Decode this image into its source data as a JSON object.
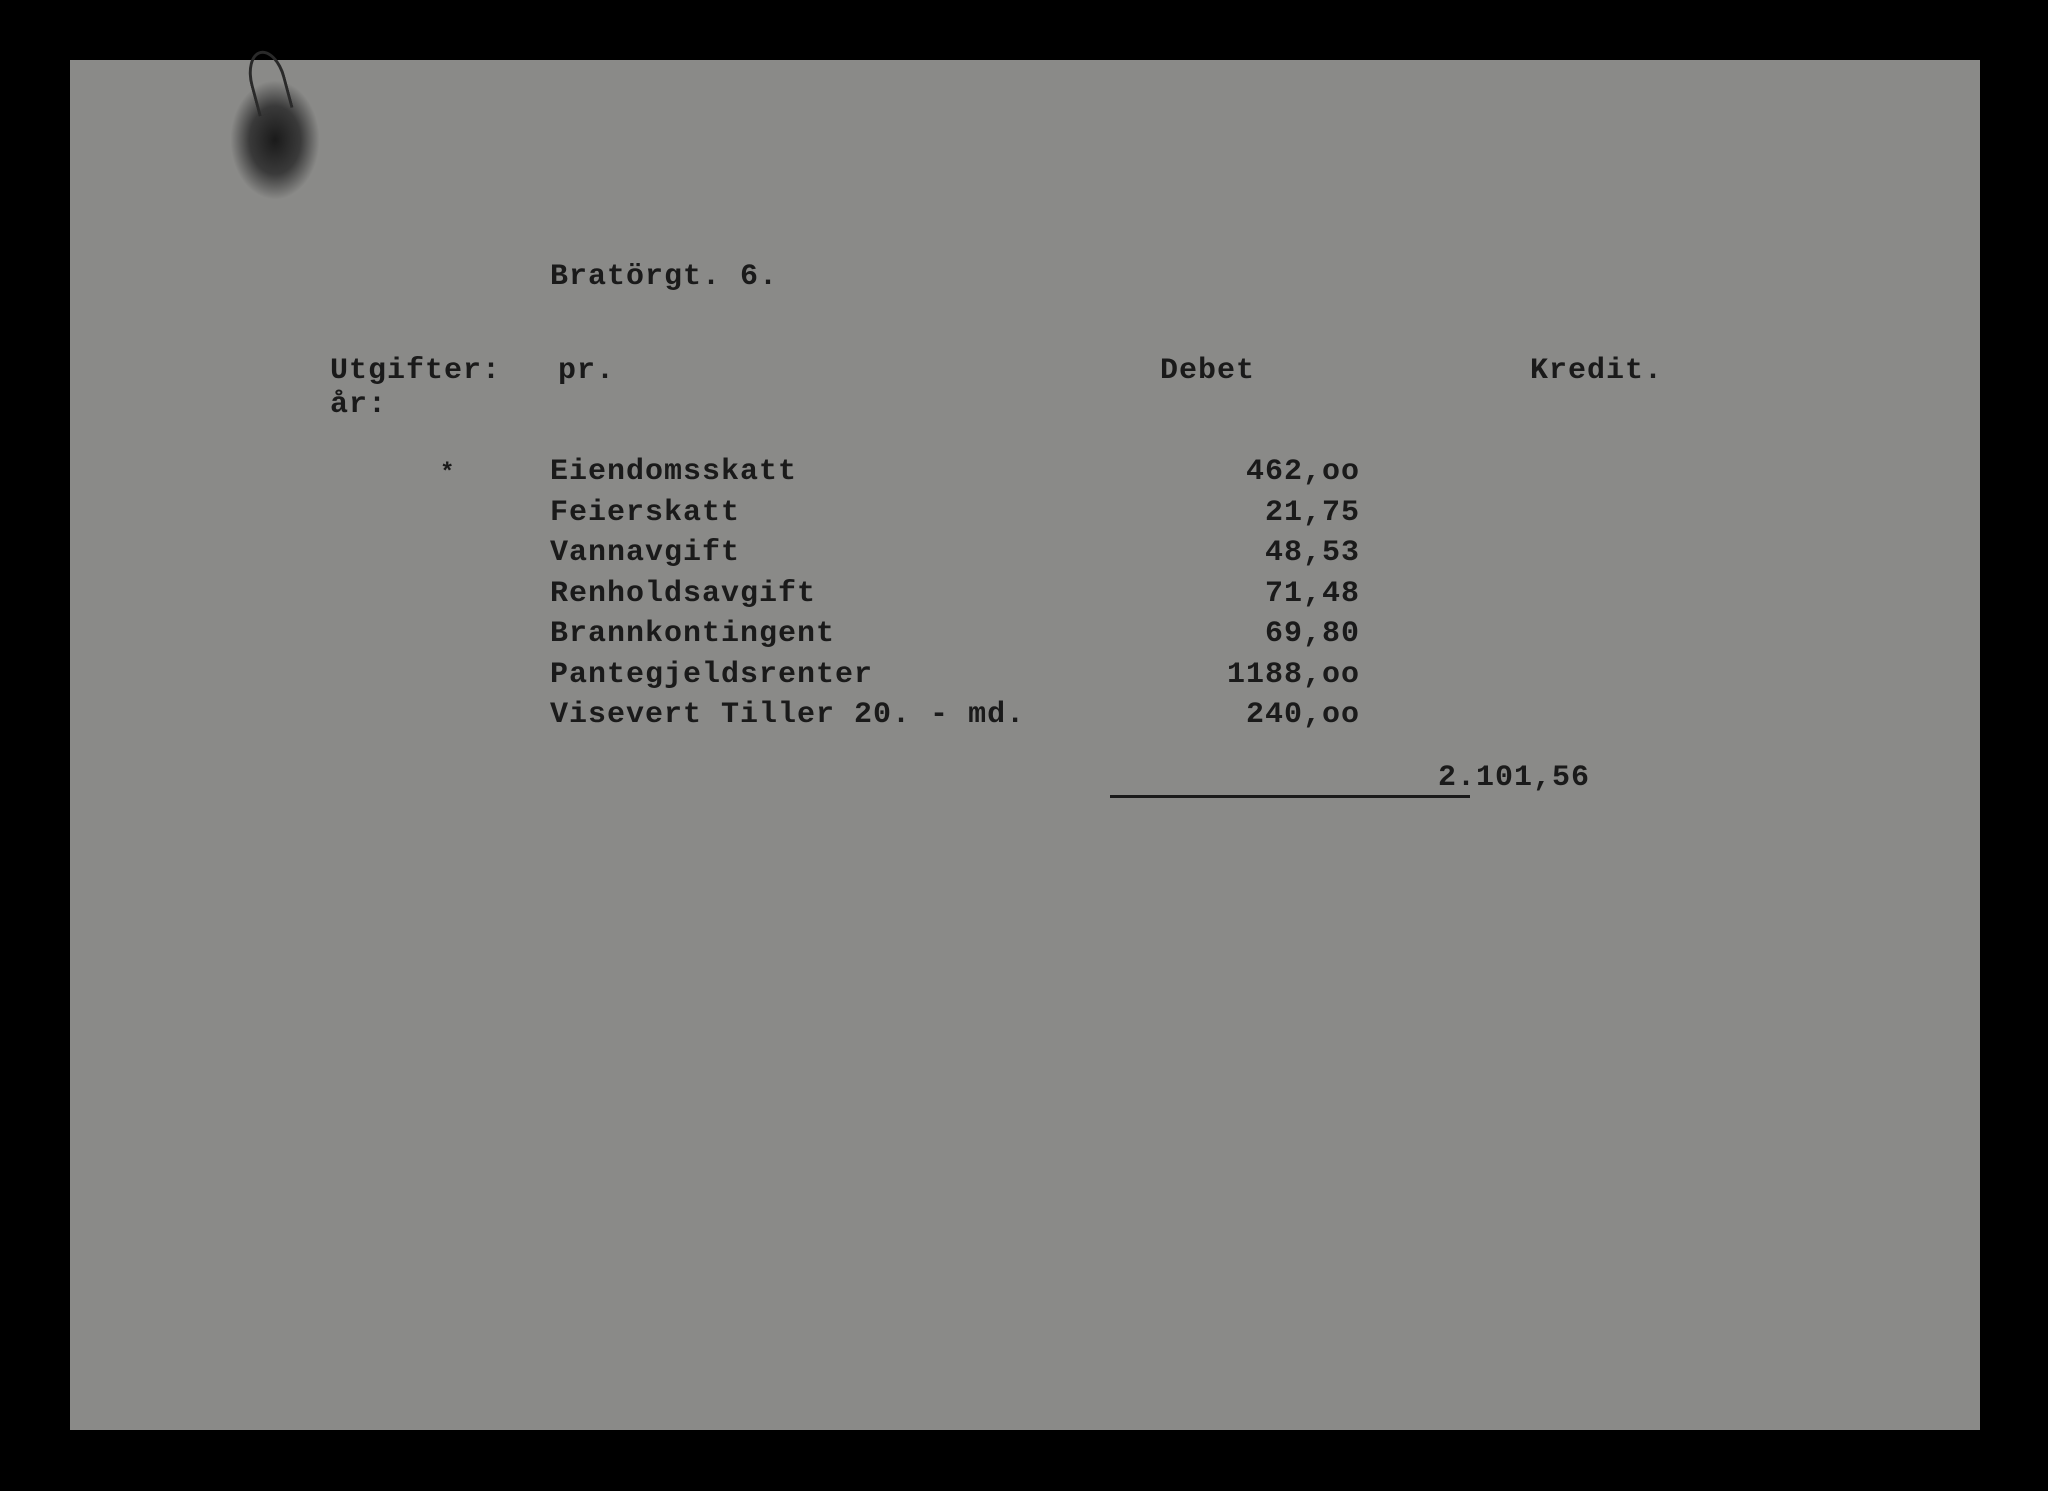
{
  "document": {
    "title": "Bratörgt.  6.",
    "section_label": "Utgifter:",
    "period_label": "pr. år:",
    "columns": {
      "debet": "Debet",
      "kredit": "Kredit."
    },
    "items": [
      {
        "label": "Eiendomsskatt",
        "debet": "462,oo"
      },
      {
        "label": "Feierskatt",
        "debet": "21,75"
      },
      {
        "label": "Vannavgift",
        "debet": "48,53"
      },
      {
        "label": "Renholdsavgift",
        "debet": "71,48"
      },
      {
        "label": "Brannkontingent",
        "debet": "69,80"
      },
      {
        "label": "Pantegjeldsrenter",
        "debet": "1188,oo"
      },
      {
        "label": "Visevert Tiller 20. - md.",
        "debet": "240,oo"
      }
    ],
    "total": "2.101,56",
    "marker": "*",
    "styling": {
      "background_color": "#8a8a88",
      "text_color": "#1a1a1a",
      "font_family": "Courier New",
      "font_size_pt": 22,
      "font_weight": "bold",
      "page_border_color": "#000000"
    }
  }
}
